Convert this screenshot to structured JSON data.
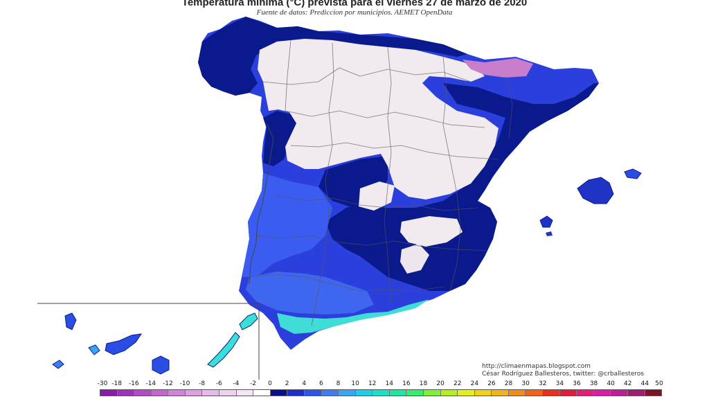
{
  "title": "Temperatura mínima (°C) prevista para el viernes 27 de marzo de 2020",
  "subtitle": "Fuente de datos: Prediccion por municipios. AEMET OpenData",
  "credits": {
    "line1": "http://climaenmapas.blogspot.com",
    "line2": "César Rodríguez Ballesteros, twitter: @crballesteros"
  },
  "legend": {
    "ticks": [
      "-30",
      "-18",
      "-16",
      "-14",
      "-12",
      "-10",
      "-8",
      "-6",
      "-4",
      "-2",
      "0",
      "2",
      "4",
      "6",
      "8",
      "10",
      "12",
      "14",
      "16",
      "18",
      "20",
      "22",
      "24",
      "26",
      "28",
      "30",
      "32",
      "34",
      "36",
      "38",
      "40",
      "42",
      "44",
      "50"
    ],
    "colors": [
      "#8a1aa8",
      "#a02fb8",
      "#b54ac6",
      "#c466d0",
      "#d183d9",
      "#dda0e2",
      "#e6bbe9",
      "#eed2f0",
      "#f5e6f6",
      "#ffffff",
      "#0a0f8c",
      "#1e2fc8",
      "#2f57e6",
      "#3f7cf2",
      "#3aa6f2",
      "#22cde6",
      "#1ee0c8",
      "#1ee6a0",
      "#3aec6e",
      "#7cf03a",
      "#b4f01e",
      "#e4f01e",
      "#f0d21e",
      "#f0b41e",
      "#f08c1e",
      "#f0641e",
      "#e8321e",
      "#e01e3c",
      "#e01e78",
      "#d81ea8",
      "#c01e98",
      "#a01e6e",
      "#7a1428"
    ]
  },
  "colors": {
    "sea": "#ffffff",
    "cold_white": "#f1eaee",
    "dark_blue": "#0a1a8c",
    "mid_blue": "#2438d8",
    "light_blue": "#3a56ec",
    "cyan": "#3ae0d8",
    "purple": "#c476c8",
    "border_line": "#444444"
  }
}
